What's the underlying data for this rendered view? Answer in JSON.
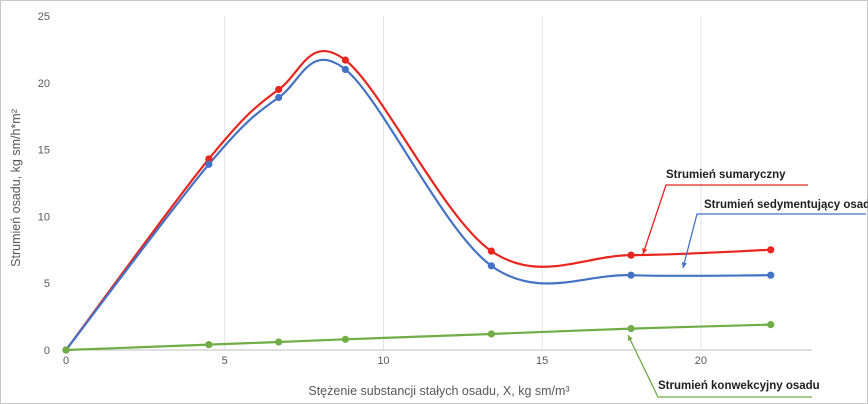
{
  "chart_data": {
    "type": "line",
    "xlabel": "Stężenie substancji stałych osadu, X, kg sm/m³",
    "ylabel": "Strumień osadu, kg sm/h*m²",
    "xlim": [
      0,
      23.5
    ],
    "ylim": [
      0,
      25
    ],
    "x_ticks": [
      "0",
      "5",
      "10",
      "15",
      "20"
    ],
    "y_ticks": [
      "0",
      "5",
      "10",
      "15",
      "20",
      "25"
    ],
    "grid": "vertical",
    "legend": "none",
    "series": [
      {
        "name": "Strumień sumaryczny",
        "color": "#e8251f",
        "x": [
          0,
          4.5,
          6.7,
          8.8,
          13.4,
          17.8,
          22.2
        ],
        "y": [
          0,
          14.3,
          19.5,
          21.7,
          7.4,
          7.1,
          7.5
        ]
      },
      {
        "name": "Strumień sedymentujący osadu",
        "color": "#4472c4",
        "x": [
          0,
          4.5,
          6.7,
          8.8,
          13.4,
          17.8,
          22.2
        ],
        "y": [
          0,
          13.9,
          18.9,
          21.0,
          6.3,
          5.6,
          5.6
        ]
      },
      {
        "name": "Strumień konwekcyjny osadu",
        "color": "#70ad47",
        "x": [
          0,
          4.5,
          6.7,
          8.8,
          13.4,
          17.8,
          22.2
        ],
        "y": [
          0,
          0.4,
          0.6,
          0.8,
          1.2,
          1.6,
          1.9
        ]
      }
    ],
    "annotations": [
      "Strumień sumaryczny",
      "Strumień sedymentujący osadu",
      "Strumień konwekcyjny osadu"
    ]
  }
}
